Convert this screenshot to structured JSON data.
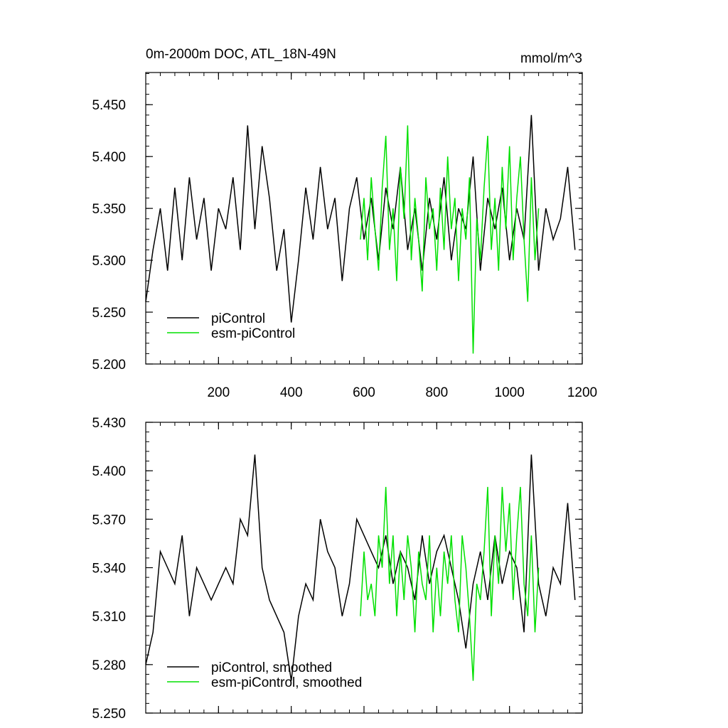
{
  "chart_data": [
    {
      "type": "line",
      "title": "0m-2000m DOC, ATL_18N-49N",
      "units": "mmol/m^3",
      "xlim": [
        0,
        1200
      ],
      "xticks": [
        200,
        400,
        600,
        800,
        1000,
        1200
      ],
      "ylim": [
        5.2,
        5.481
      ],
      "yticks": [
        {
          "value": 5.2,
          "label": "5.200"
        },
        {
          "value": 5.25,
          "label": "5.250"
        },
        {
          "value": 5.3,
          "label": "5.300"
        },
        {
          "value": 5.35,
          "label": "5.350"
        },
        {
          "value": 5.4,
          "label": "5.400"
        },
        {
          "value": 5.45,
          "label": "5.450"
        }
      ],
      "legend": "lower left",
      "series": [
        {
          "name": "piControl",
          "color": "#000000",
          "x": [
            0,
            20,
            40,
            60,
            80,
            100,
            120,
            140,
            160,
            180,
            200,
            220,
            240,
            260,
            280,
            300,
            320,
            340,
            360,
            380,
            400,
            420,
            440,
            460,
            480,
            500,
            520,
            540,
            560,
            580,
            600,
            620,
            640,
            660,
            680,
            700,
            720,
            740,
            760,
            780,
            800,
            820,
            840,
            860,
            880,
            900,
            920,
            940,
            960,
            980,
            1000,
            1020,
            1040,
            1060,
            1080,
            1100,
            1120,
            1140,
            1160,
            1180
          ],
          "values": [
            5.26,
            5.31,
            5.35,
            5.29,
            5.37,
            5.3,
            5.38,
            5.32,
            5.36,
            5.29,
            5.35,
            5.33,
            5.38,
            5.31,
            5.43,
            5.33,
            5.41,
            5.36,
            5.29,
            5.33,
            5.24,
            5.3,
            5.37,
            5.32,
            5.39,
            5.33,
            5.36,
            5.28,
            5.35,
            5.38,
            5.32,
            5.36,
            5.3,
            5.37,
            5.33,
            5.39,
            5.31,
            5.35,
            5.29,
            5.36,
            5.32,
            5.38,
            5.3,
            5.35,
            5.33,
            5.4,
            5.29,
            5.36,
            5.33,
            5.37,
            5.3,
            5.35,
            5.32,
            5.44,
            5.29,
            5.35,
            5.32,
            5.34,
            5.39,
            5.31
          ]
        },
        {
          "name": "esm-piControl",
          "color": "#00e000",
          "x": [
            590,
            600,
            610,
            620,
            630,
            640,
            650,
            660,
            670,
            680,
            690,
            700,
            710,
            720,
            730,
            740,
            750,
            760,
            770,
            780,
            790,
            800,
            810,
            820,
            830,
            840,
            850,
            860,
            870,
            880,
            890,
            900,
            910,
            920,
            930,
            940,
            950,
            960,
            970,
            980,
            990,
            1000,
            1010,
            1020,
            1030,
            1040,
            1050,
            1060,
            1070,
            1080
          ],
          "values": [
            5.32,
            5.36,
            5.3,
            5.38,
            5.33,
            5.29,
            5.37,
            5.42,
            5.31,
            5.35,
            5.28,
            5.39,
            5.34,
            5.43,
            5.3,
            5.36,
            5.32,
            5.27,
            5.38,
            5.33,
            5.35,
            5.29,
            5.37,
            5.31,
            5.4,
            5.33,
            5.36,
            5.28,
            5.35,
            5.32,
            5.38,
            5.21,
            5.34,
            5.3,
            5.37,
            5.42,
            5.31,
            5.36,
            5.29,
            5.39,
            5.33,
            5.41,
            5.3,
            5.36,
            5.4,
            5.32,
            5.26,
            5.38,
            5.3,
            5.35
          ]
        }
      ]
    },
    {
      "type": "line",
      "xlim": [
        0,
        1200
      ],
      "xticks": [
        200,
        400,
        600,
        800,
        1000,
        1200
      ],
      "xtick_labels": false,
      "ylim": [
        5.25,
        5.43
      ],
      "yticks": [
        {
          "value": 5.25,
          "label": "5.250"
        },
        {
          "value": 5.28,
          "label": "5.280"
        },
        {
          "value": 5.31,
          "label": "5.310"
        },
        {
          "value": 5.34,
          "label": "5.340"
        },
        {
          "value": 5.37,
          "label": "5.370"
        },
        {
          "value": 5.4,
          "label": "5.400"
        },
        {
          "value": 5.43,
          "label": "5.430"
        }
      ],
      "legend": "lower left",
      "series": [
        {
          "name": "piControl, smoothed",
          "color": "#000000",
          "x": [
            0,
            20,
            40,
            60,
            80,
            100,
            120,
            140,
            160,
            180,
            200,
            220,
            240,
            260,
            280,
            300,
            320,
            340,
            360,
            380,
            400,
            420,
            440,
            460,
            480,
            500,
            520,
            540,
            560,
            580,
            600,
            620,
            640,
            660,
            680,
            700,
            720,
            740,
            760,
            780,
            800,
            820,
            840,
            860,
            880,
            900,
            920,
            940,
            960,
            980,
            1000,
            1020,
            1040,
            1060,
            1080,
            1100,
            1120,
            1140,
            1160,
            1180
          ],
          "values": [
            5.28,
            5.3,
            5.35,
            5.34,
            5.33,
            5.36,
            5.31,
            5.34,
            5.33,
            5.32,
            5.33,
            5.34,
            5.33,
            5.37,
            5.36,
            5.41,
            5.34,
            5.32,
            5.31,
            5.3,
            5.27,
            5.31,
            5.33,
            5.32,
            5.37,
            5.35,
            5.34,
            5.31,
            5.33,
            5.37,
            5.36,
            5.35,
            5.34,
            5.36,
            5.33,
            5.35,
            5.34,
            5.32,
            5.36,
            5.33,
            5.35,
            5.36,
            5.34,
            5.32,
            5.29,
            5.33,
            5.35,
            5.32,
            5.36,
            5.33,
            5.35,
            5.34,
            5.3,
            5.41,
            5.33,
            5.31,
            5.34,
            5.33,
            5.38,
            5.32
          ]
        },
        {
          "name": "esm-piControl, smoothed",
          "color": "#00e000",
          "x": [
            590,
            600,
            610,
            620,
            630,
            640,
            650,
            660,
            670,
            680,
            690,
            700,
            710,
            720,
            730,
            740,
            750,
            760,
            770,
            780,
            790,
            800,
            810,
            820,
            830,
            840,
            850,
            860,
            870,
            880,
            890,
            900,
            910,
            920,
            930,
            940,
            950,
            960,
            970,
            980,
            990,
            1000,
            1010,
            1020,
            1030,
            1040,
            1050,
            1060,
            1070,
            1080
          ],
          "values": [
            5.31,
            5.35,
            5.32,
            5.33,
            5.31,
            5.36,
            5.34,
            5.39,
            5.33,
            5.36,
            5.31,
            5.35,
            5.32,
            5.36,
            5.34,
            5.3,
            5.35,
            5.33,
            5.32,
            5.36,
            5.3,
            5.34,
            5.31,
            5.35,
            5.33,
            5.36,
            5.32,
            5.3,
            5.36,
            5.34,
            5.31,
            5.27,
            5.33,
            5.32,
            5.35,
            5.39,
            5.31,
            5.36,
            5.33,
            5.39,
            5.35,
            5.38,
            5.32,
            5.36,
            5.39,
            5.33,
            5.31,
            5.36,
            5.3,
            5.34
          ]
        }
      ]
    }
  ]
}
